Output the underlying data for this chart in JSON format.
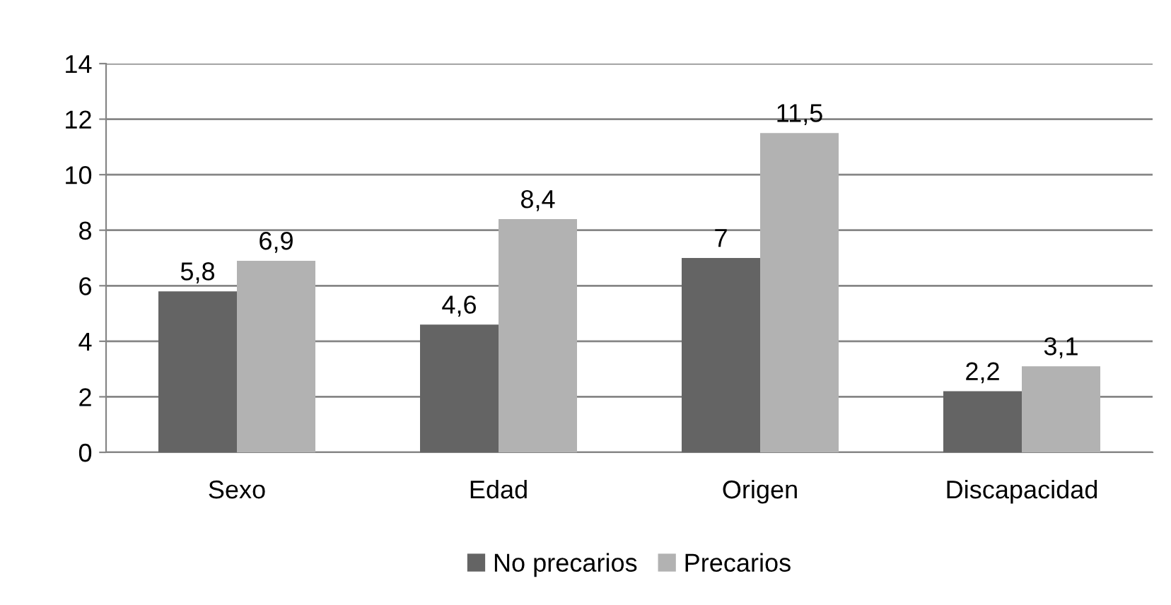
{
  "chart_data": {
    "type": "bar",
    "categories": [
      "Sexo",
      "Edad",
      "Origen",
      "Discapacidad"
    ],
    "series": [
      {
        "name": "No precarios",
        "color": "#646464",
        "values": [
          5.8,
          4.6,
          7,
          2.2
        ],
        "value_labels": [
          "5,8",
          "4,6",
          "7",
          "2,2"
        ]
      },
      {
        "name": "Precarios",
        "color": "#b2b2b2",
        "values": [
          6.9,
          8.4,
          11.5,
          3.1
        ],
        "value_labels": [
          "6,9",
          "8,4",
          "11,5",
          "3,1"
        ]
      }
    ],
    "ylim": [
      0,
      14
    ],
    "yticks": [
      0,
      2,
      4,
      6,
      8,
      10,
      12,
      14
    ],
    "grid": "y",
    "legend": "bottom"
  }
}
